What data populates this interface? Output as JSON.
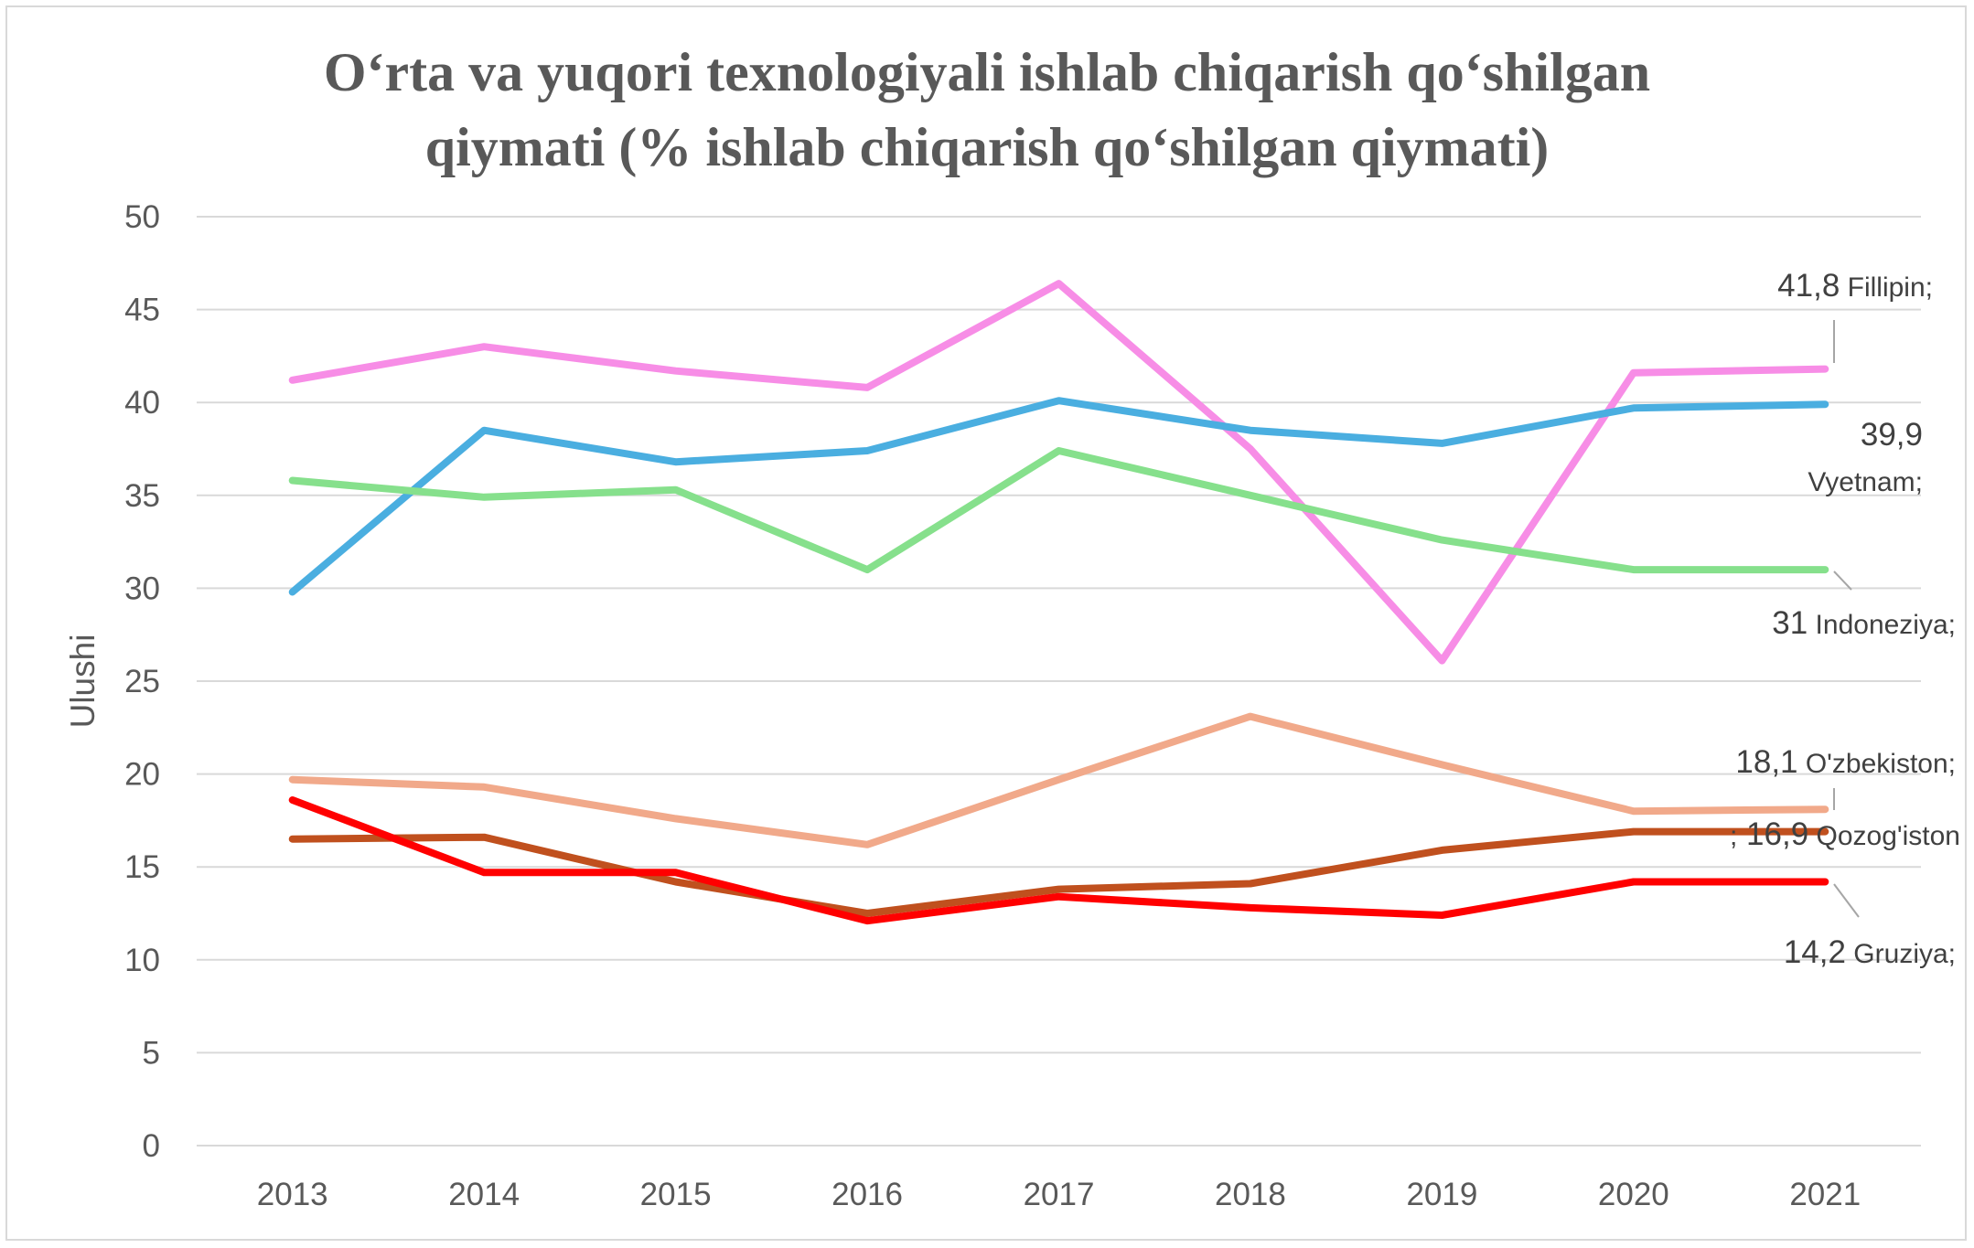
{
  "chart_data": {
    "type": "line",
    "title_lines": [
      "O‘rta va yuqori texnologiyali ishlab chiqarish qo‘shilgan",
      "qiymati (% ishlab chiqarish qo‘shilgan qiymati)"
    ],
    "xlabel": "",
    "ylabel": "Ulushi",
    "ylim": [
      0,
      50
    ],
    "yticks": [
      0,
      5,
      10,
      15,
      20,
      25,
      30,
      35,
      40,
      45,
      50
    ],
    "categories": [
      "2013",
      "2014",
      "2015",
      "2016",
      "2017",
      "2018",
      "2019",
      "2020",
      "2021"
    ],
    "grid": true,
    "legend": "none",
    "series": [
      {
        "name": "Fillipin",
        "color": "#f78de6",
        "values": [
          41.2,
          43.0,
          41.7,
          40.8,
          46.4,
          37.5,
          26.1,
          41.6,
          41.8
        ],
        "label_value": "41,8",
        "label_name": "Fillipin;"
      },
      {
        "name": "Vyetnam",
        "color": "#4aaee0",
        "values": [
          29.8,
          38.5,
          36.8,
          37.4,
          40.1,
          38.5,
          37.8,
          39.7,
          39.9
        ],
        "label_value": "39,9",
        "label_name": "Vyetnam;"
      },
      {
        "name": "Indoneziya",
        "color": "#86e08c",
        "values": [
          35.8,
          34.9,
          35.3,
          31.0,
          37.4,
          35.0,
          32.6,
          31.0,
          31.0
        ],
        "label_value": "31",
        "label_name": "Indoneziya;"
      },
      {
        "name": "O'zbekiston",
        "color": "#f1a98a",
        "values": [
          19.7,
          19.3,
          17.6,
          16.2,
          19.7,
          23.1,
          20.5,
          18.0,
          18.1
        ],
        "label_value": "18,1",
        "label_name": "O'zbekiston;"
      },
      {
        "name": "Qozog'iston",
        "color": "#c0501e",
        "values": [
          16.5,
          16.6,
          14.2,
          12.5,
          13.8,
          14.1,
          15.9,
          16.9,
          16.9
        ],
        "label_prefix": ";",
        "label_value": "16,9",
        "label_name": "Qozog'iston"
      },
      {
        "name": "Gruziya",
        "color": "#ff0000",
        "values": [
          18.6,
          14.7,
          14.7,
          12.1,
          13.4,
          12.8,
          12.4,
          14.2,
          14.2
        ],
        "label_value": "14,2",
        "label_name": "Gruziya;"
      }
    ]
  }
}
